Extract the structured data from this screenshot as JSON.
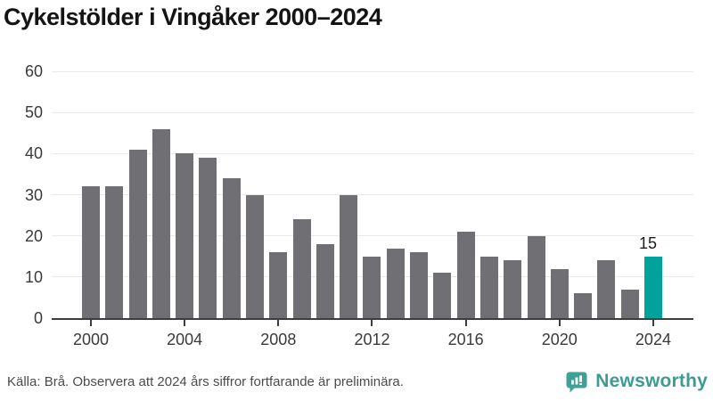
{
  "title": "Cykelstölder i Vingåker 2000–2024",
  "footer": {
    "source": "Källa: Brå. Observera att 2024 års siffror fortfarande är preliminära."
  },
  "branding": {
    "name": "Newsworthy",
    "icon": "bar-chart-speech-bubble-icon"
  },
  "colors": {
    "bar": "#6f6f74",
    "highlight": "#00a29b",
    "axis": "#3d3d3d",
    "grid": "#e8e8e8",
    "title": "#141414",
    "tick_label": "#3a3a3a",
    "source_text": "#4b4b4b",
    "brand": "#3e9b93"
  },
  "chart_data": {
    "type": "bar",
    "title": "Cykelstölder i Vingåker 2000–2024",
    "categories": [
      2000,
      2001,
      2002,
      2003,
      2004,
      2005,
      2006,
      2007,
      2008,
      2009,
      2010,
      2011,
      2012,
      2013,
      2014,
      2015,
      2016,
      2017,
      2018,
      2019,
      2020,
      2021,
      2022,
      2023,
      2024
    ],
    "values": [
      32,
      32,
      41,
      46,
      40,
      39,
      34,
      30,
      16,
      24,
      18,
      30,
      15,
      17,
      16,
      11,
      21,
      15,
      14,
      20,
      12,
      6,
      14,
      7,
      15
    ],
    "highlight_index": 24,
    "highlight_label": "15",
    "xlabel": "",
    "ylabel": "",
    "ylim": [
      0,
      60
    ],
    "yticks": [
      0,
      10,
      20,
      30,
      40,
      50,
      60
    ],
    "xticks": [
      2000,
      2004,
      2008,
      2012,
      2016,
      2020,
      2024
    ],
    "grid": "horizontal",
    "legend": "none"
  }
}
